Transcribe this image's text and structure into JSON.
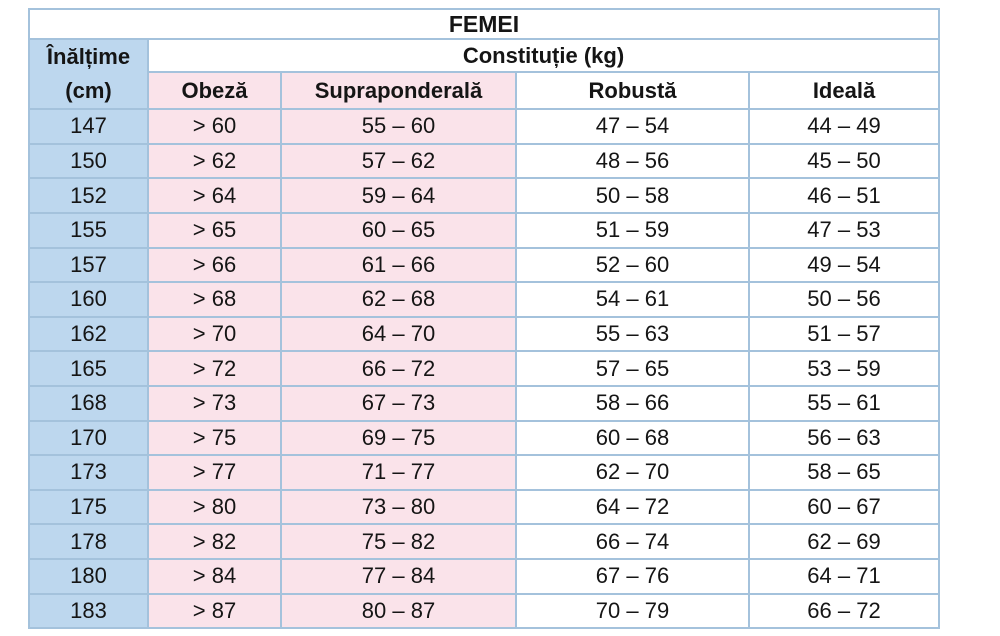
{
  "title": "FEMEI",
  "header": {
    "height_line1": "Înălțime",
    "height_line2": "(cm)",
    "constitution": "Constituție (kg)",
    "columns": [
      "Obeză",
      "Supraponderală",
      "Robustă",
      "Ideală"
    ]
  },
  "colors": {
    "blue_fill": "#BDD7EE",
    "pink_fill": "#FAE3EA",
    "border": "#A4C2DC",
    "text": "#151515",
    "background": "#FFFFFF"
  },
  "chart_data": {
    "type": "table",
    "title": "FEMEI",
    "columns": [
      "Înălțime (cm)",
      "Obeză",
      "Supraponderală",
      "Robustă",
      "Ideală"
    ],
    "rows": [
      [
        "147",
        "> 60",
        "55 – 60",
        "47 – 54",
        "44 – 49"
      ],
      [
        "150",
        "> 62",
        "57 – 62",
        "48 – 56",
        "45 – 50"
      ],
      [
        "152",
        "> 64",
        "59 – 64",
        "50 – 58",
        "46 – 51"
      ],
      [
        "155",
        "> 65",
        "60 – 65",
        "51 – 59",
        "47 – 53"
      ],
      [
        "157",
        "> 66",
        "61 – 66",
        "52 – 60",
        "49 – 54"
      ],
      [
        "160",
        "> 68",
        "62 – 68",
        "54 – 61",
        "50 – 56"
      ],
      [
        "162",
        "> 70",
        "64 – 70",
        "55 – 63",
        "51 – 57"
      ],
      [
        "165",
        "> 72",
        "66 – 72",
        "57 – 65",
        "53 – 59"
      ],
      [
        "168",
        "> 73",
        "67 – 73",
        "58 – 66",
        "55 – 61"
      ],
      [
        "170",
        "> 75",
        "69 – 75",
        "60 – 68",
        "56 – 63"
      ],
      [
        "173",
        "> 77",
        "71 – 77",
        "62 – 70",
        "58 – 65"
      ],
      [
        "175",
        "> 80",
        "73 – 80",
        "64 – 72",
        "60 – 67"
      ],
      [
        "178",
        "> 82",
        "75 – 82",
        "66 – 74",
        "62 – 69"
      ],
      [
        "180",
        "> 84",
        "77 – 84",
        "67 – 76",
        "64 – 71"
      ],
      [
        "183",
        "> 87",
        "80 – 87",
        "70 – 79",
        "66 – 72"
      ]
    ]
  }
}
